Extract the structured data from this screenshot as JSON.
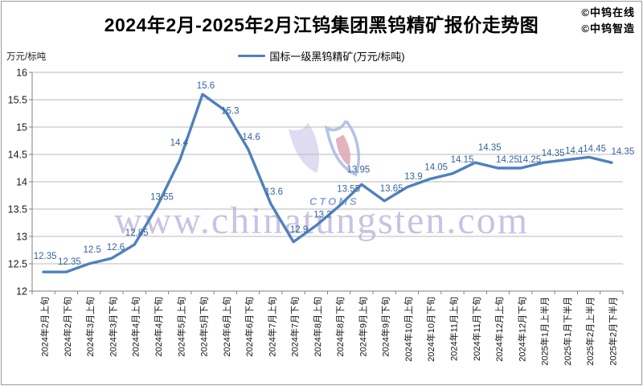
{
  "header": {
    "title": "2024年2月-2025年2月江钨集团黑钨精矿报价走势图"
  },
  "meta": {
    "credits": [
      "©中钨在线",
      "©中钨智造"
    ]
  },
  "legend": {
    "label": "国标一级黑钨精矿(万元/标吨)"
  },
  "axis": {
    "y_unit": "万元/标吨",
    "y_ticks": [
      "16",
      "15.5",
      "15",
      "14.5",
      "14",
      "13.5",
      "13",
      "12.5",
      "12"
    ]
  },
  "watermark": {
    "text": "www.chinatungsten.com",
    "logo_text": "CTOMS"
  },
  "chart_data": {
    "type": "line",
    "title": "2024年2月-2025年2月江钨集团黑钨精矿报价走势图",
    "series_name": "国标一级黑钨精矿(万元/标吨)",
    "categories": [
      "2024年2月上旬",
      "2024年2月下旬",
      "2024年3月上旬",
      "2024年3月下旬",
      "2024年4月上旬",
      "2024年4月下旬",
      "2024年5月上旬",
      "2024年5月下旬",
      "2024年6月上旬",
      "2024年6月下旬",
      "2024年7月上旬",
      "2024年7月下旬",
      "2024年8月上旬",
      "2024年8月下旬",
      "2024年9月上旬",
      "2024年9月下旬",
      "2024年10月上旬",
      "2024年10月下旬",
      "2024年11月上旬",
      "2024年11月下旬",
      "2024年12月上旬",
      "2024年12月下旬",
      "2025年1月上半月",
      "2025年1月下半月",
      "2025年2月上半月",
      "2025年2月下半月"
    ],
    "values": [
      12.35,
      12.35,
      12.5,
      12.6,
      12.85,
      13.55,
      14.4,
      15.6,
      15.3,
      14.6,
      13.6,
      12.9,
      13.2,
      13.55,
      13.95,
      13.65,
      13.9,
      14.05,
      14.15,
      14.35,
      14.25,
      14.25,
      14.35,
      14.4,
      14.45,
      14.35
    ],
    "labels": [
      "12.35",
      "12.35",
      "12.5",
      "12.6",
      "12.85",
      "13.55",
      "14.4",
      "15.6",
      "15.3",
      "14.6",
      "13.6",
      "12.9",
      "13.2",
      "13.55",
      "13.95",
      "13.65",
      "13.9",
      "14.05",
      "14.15",
      "14.35",
      "14.25",
      "14.25",
      "14.35",
      "14.4",
      "14.45",
      "14.35"
    ],
    "xlabel": "",
    "ylabel": "万元/标吨",
    "ylim": [
      12,
      16
    ],
    "y_step": 0.5,
    "grid": true,
    "legend_position": "top",
    "line_color": "#4F81BD",
    "label_color": "#37649B",
    "grid_color": "#b9b9b9",
    "axis_color": "#808080"
  }
}
